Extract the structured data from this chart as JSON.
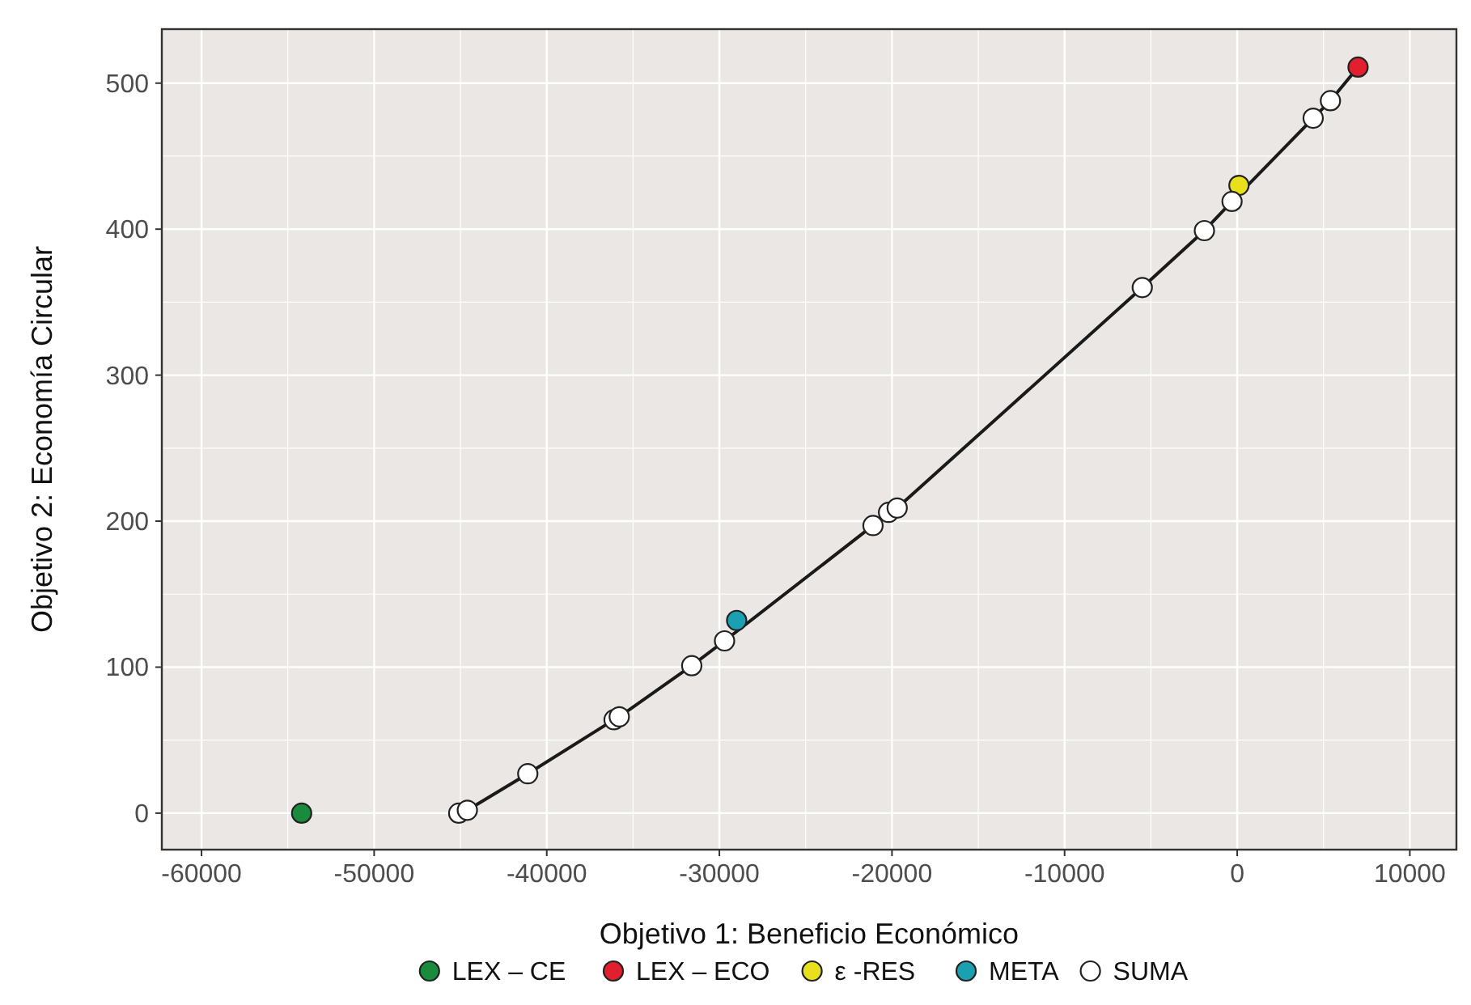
{
  "chart_data": {
    "type": "scatter",
    "xlabel": "Objetivo 1: Beneficio Económico",
    "ylabel": "Objetivo 2: Economía Circular",
    "xlim": [
      -62300,
      12700
    ],
    "ylim": [
      -25,
      537
    ],
    "xticks": [
      -60000,
      -50000,
      -40000,
      -30000,
      -20000,
      -10000,
      0,
      10000
    ],
    "yticks": [
      0,
      100,
      200,
      300,
      400,
      500
    ],
    "grid": true,
    "legend": "bottom",
    "marker": "circle",
    "series": [
      {
        "type": "line",
        "color": "#1a1a1a",
        "line_style": "solid",
        "marker": "none",
        "x": [
          -45100,
          -44600,
          -41100,
          -36100,
          -35800,
          -31600,
          -29700,
          -21100,
          -20200,
          -19700,
          -5500,
          -1900,
          -300,
          4400,
          5400,
          7000
        ],
        "values": [
          0,
          2,
          27,
          64,
          66,
          101,
          118,
          197,
          206,
          209,
          360,
          399,
          419,
          476,
          488,
          511
        ]
      },
      {
        "name": "LEX – CE",
        "color": "#1a8a3c",
        "x": [
          -54200
        ],
        "values": [
          0
        ]
      },
      {
        "name": "LEX – ECO",
        "color": "#e0202e",
        "x": [
          7000
        ],
        "values": [
          511
        ]
      },
      {
        "name": "ε -RES",
        "color": "#e8e01c",
        "x": [
          100
        ],
        "values": [
          430
        ]
      },
      {
        "name": "META",
        "color": "#1aa0b0",
        "x": [
          -29000
        ],
        "values": [
          132
        ]
      },
      {
        "name": "SUMA",
        "color": "#ffffff",
        "x": [
          -45100,
          -44600,
          -41100,
          -36100,
          -35800,
          -31600,
          -29700,
          -21100,
          -20200,
          -19700,
          -5500,
          -1900,
          -300,
          4400,
          5400
        ],
        "values": [
          0,
          2,
          27,
          64,
          66,
          101,
          118,
          197,
          206,
          209,
          360,
          399,
          419,
          476,
          488
        ]
      }
    ]
  }
}
